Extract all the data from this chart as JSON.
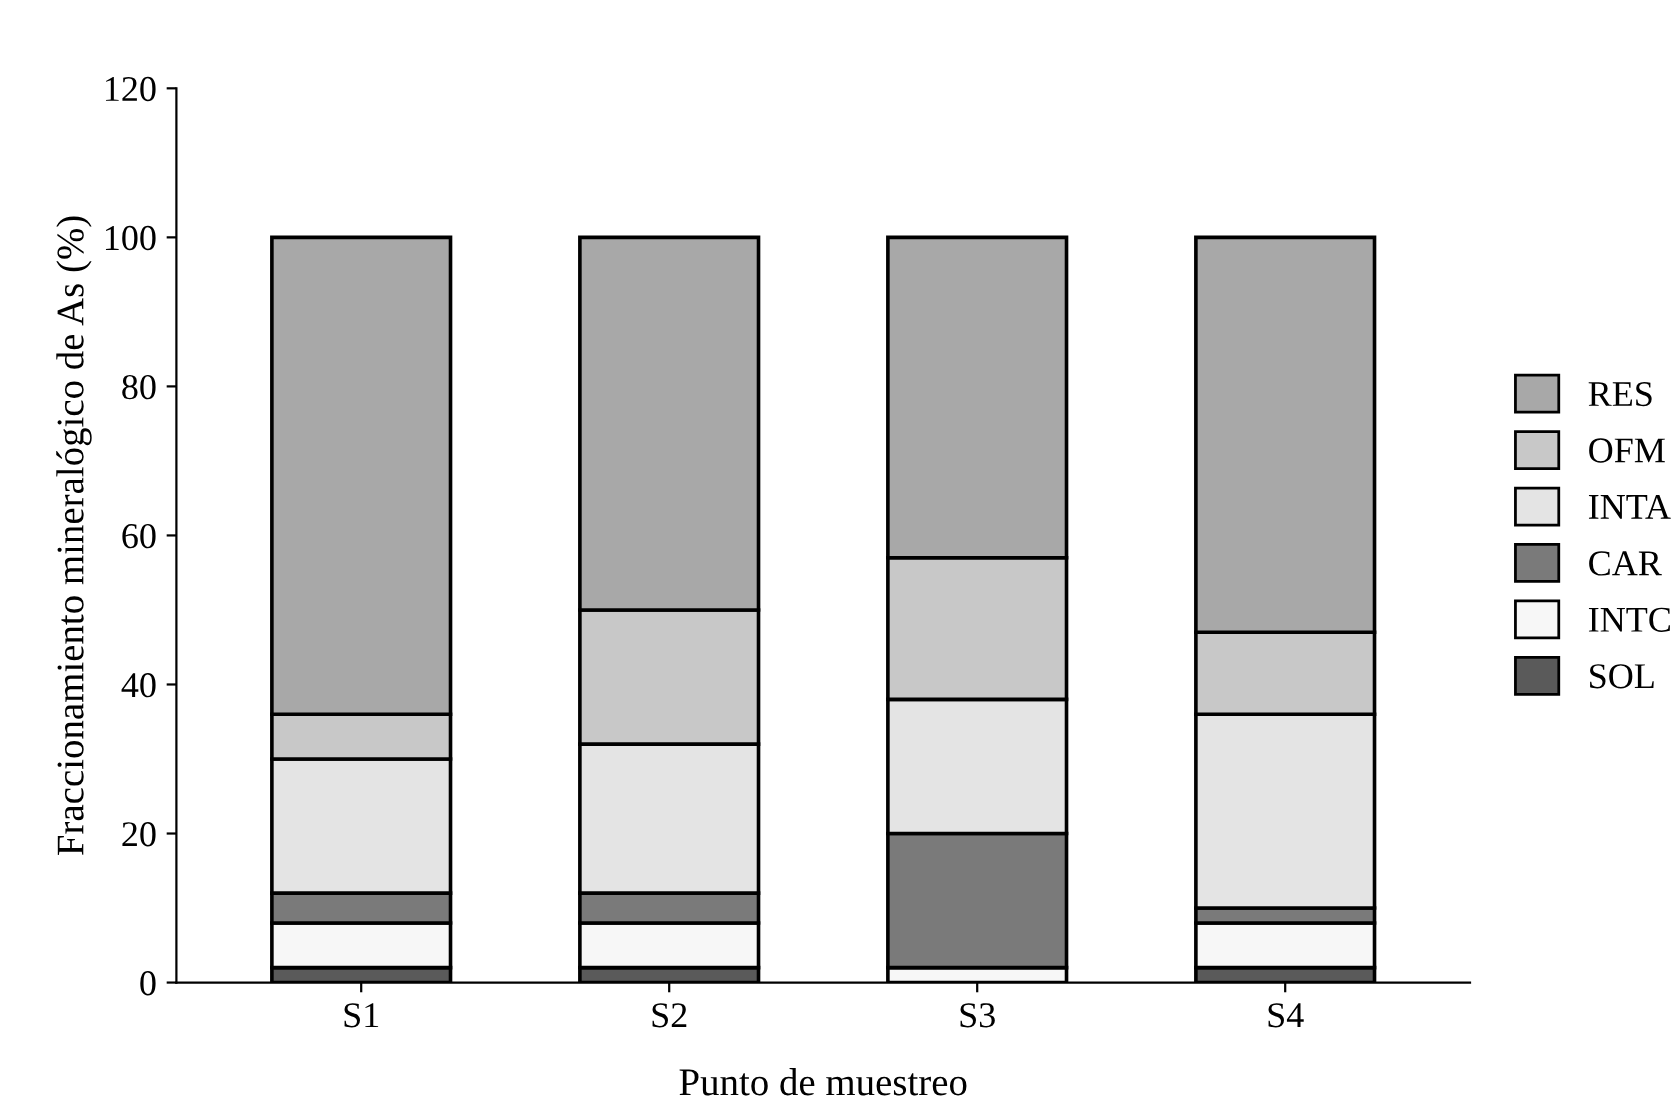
{
  "chart_data": {
    "type": "bar",
    "stacked": true,
    "xlabel": "Punto de muestreo",
    "ylabel": "Fraccionamiento mineralógico de As (%)",
    "categories": [
      "S1",
      "S2",
      "S3",
      "S4"
    ],
    "series": [
      {
        "name": "SOL",
        "color": "#5a5a5a",
        "values": [
          2,
          2,
          0,
          2
        ]
      },
      {
        "name": "INTC",
        "color": "#f7f7f7",
        "values": [
          6,
          6,
          2,
          6
        ]
      },
      {
        "name": "CAR",
        "color": "#7a7a7a",
        "values": [
          4,
          4,
          18,
          2
        ]
      },
      {
        "name": "INTA",
        "color": "#e4e4e4",
        "values": [
          18,
          20,
          18,
          26
        ]
      },
      {
        "name": "OFM",
        "color": "#c8c8c8",
        "values": [
          6,
          18,
          19,
          11
        ]
      },
      {
        "name": "RES",
        "color": "#a8a8a8",
        "values": [
          64,
          50,
          43,
          53
        ]
      }
    ],
    "ylim": [
      0,
      120
    ],
    "yticks": [
      0,
      20,
      40,
      60,
      80,
      100,
      120
    ],
    "grid": false,
    "legend": "right"
  }
}
